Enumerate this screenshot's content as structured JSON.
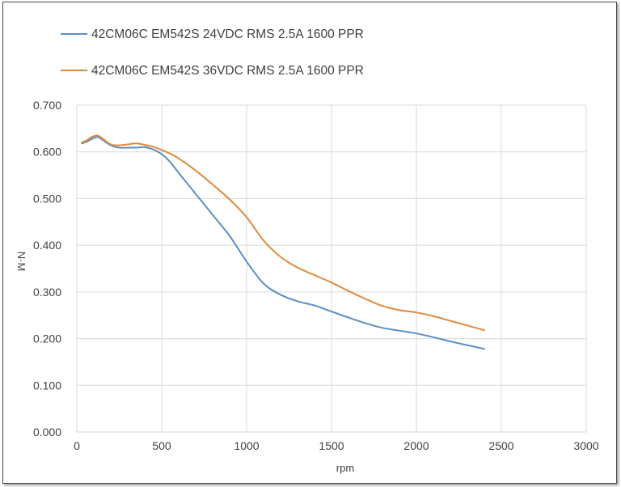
{
  "chart_data": {
    "type": "line",
    "title": "",
    "xlabel": "rpm",
    "ylabel": "N·M",
    "xlim": [
      0,
      3000
    ],
    "ylim": [
      0,
      0.7
    ],
    "x_ticks": [
      "0",
      "500",
      "1000",
      "1500",
      "2000",
      "2500",
      "3000"
    ],
    "y_ticks": [
      "0.000",
      "0.100",
      "0.200",
      "0.300",
      "0.400",
      "0.500",
      "0.600",
      "0.700"
    ],
    "grid": true,
    "legend_position": "top",
    "series": [
      {
        "name": "42CM06C EM542S 24VDC RMS 2.5A 1600 PPR",
        "color": "#5b8fc4",
        "x": [
          30,
          60,
          90,
          120,
          150,
          200,
          250,
          300,
          350,
          400,
          450,
          500,
          550,
          600,
          700,
          800,
          900,
          1000,
          1100,
          1200,
          1300,
          1400,
          1500,
          1600,
          1700,
          1800,
          1900,
          2000,
          2100,
          2200,
          2300,
          2400
        ],
        "y": [
          0.618,
          0.622,
          0.628,
          0.632,
          0.626,
          0.614,
          0.609,
          0.609,
          0.609,
          0.61,
          0.605,
          0.595,
          0.578,
          0.555,
          0.51,
          0.465,
          0.42,
          0.365,
          0.318,
          0.294,
          0.28,
          0.271,
          0.258,
          0.245,
          0.233,
          0.223,
          0.217,
          0.211,
          0.203,
          0.194,
          0.186,
          0.178
        ]
      },
      {
        "name": "42CM06C  EM542S 36VDC RMS 2.5A 1600 PPR",
        "color": "#e08a3c",
        "x": [
          30,
          60,
          90,
          120,
          150,
          200,
          250,
          300,
          350,
          400,
          450,
          500,
          550,
          600,
          700,
          800,
          900,
          1000,
          1100,
          1200,
          1300,
          1400,
          1500,
          1600,
          1700,
          1800,
          1900,
          2000,
          2100,
          2200,
          2300,
          2400
        ],
        "y": [
          0.62,
          0.625,
          0.632,
          0.635,
          0.629,
          0.616,
          0.614,
          0.616,
          0.618,
          0.615,
          0.611,
          0.604,
          0.596,
          0.586,
          0.56,
          0.53,
          0.498,
          0.46,
          0.41,
          0.375,
          0.352,
          0.336,
          0.32,
          0.302,
          0.285,
          0.27,
          0.261,
          0.256,
          0.248,
          0.238,
          0.228,
          0.218
        ]
      }
    ]
  }
}
